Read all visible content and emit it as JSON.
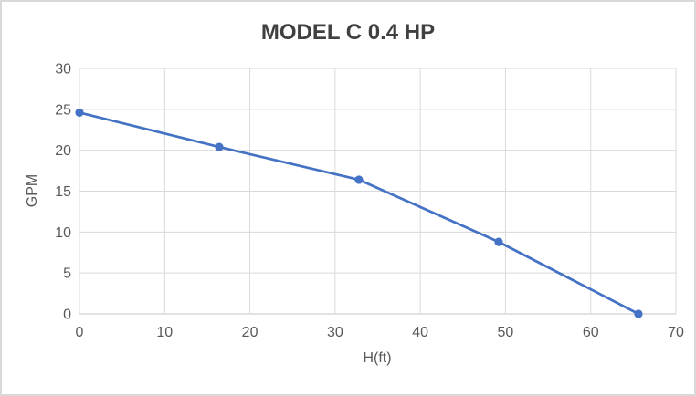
{
  "chart_data": {
    "type": "line",
    "title": "MODEL C 0.4 HP",
    "xlabel": "H(ft)",
    "ylabel": "GPM",
    "x": [
      0,
      16.4,
      32.8,
      49.2,
      65.6
    ],
    "y": [
      24.6,
      20.4,
      16.4,
      8.8,
      0
    ],
    "xlim": [
      0,
      70
    ],
    "ylim": [
      0,
      30
    ],
    "x_ticks": [
      0,
      10,
      20,
      30,
      40,
      50,
      60,
      70
    ],
    "y_ticks": [
      0,
      5,
      10,
      15,
      20,
      25,
      30
    ],
    "grid": true,
    "legend": false,
    "marker": "circle"
  },
  "colors": {
    "series_line": "#4472C4",
    "marker_fill": "#4472C4",
    "gridline": "#D9D9D9",
    "axis_line": "#D9D9D9",
    "tick_label": "#595959",
    "axis_title": "#595959",
    "chart_title": "#404040",
    "background": "#FFFFFF",
    "frame_border": "#D9D9D9"
  }
}
